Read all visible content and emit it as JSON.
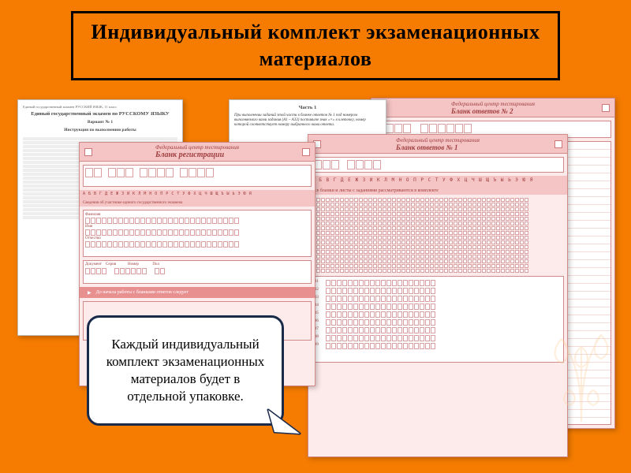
{
  "title": "Индивидуальный комплект экзаменационных материалов",
  "callout": "Каждый индивидуальный комплект экзаменационных материалов будет в отдельной упаковке.",
  "forms": {
    "answers2": {
      "org": "Федеральный центр тестирования",
      "title": "Бланк ответов № 2"
    },
    "answers1": {
      "org": "Федеральный центр тестирования",
      "title": "Бланк ответов № 1"
    },
    "registration": {
      "org": "Федеральный центр тестирования",
      "title": "Бланк регистрации",
      "footer": "До начала работы с бланками ответов следует"
    },
    "part1": {
      "header": "Часть 1",
      "note": "При выполнении заданий этой части в бланке ответов № 1 под номером выполняемого вами задания (A1 – A33) поставьте знак «×» в клеточку, номер которой соответствует номеру выбранного вами ответа."
    }
  },
  "instruction": {
    "topline": "Единый государственный экзамен    РУССКИЙ ЯЗЫК, 11 класс",
    "title": "Единый государственный экзамен по РУССКОМУ ЯЗЫКУ",
    "variant": "Вариант № 1",
    "subtitle": "Инструкция по выполнению работы"
  },
  "colors": {
    "bg": "#f57c00",
    "formBg": "#fdeaea",
    "formHeader": "#f5c4c4",
    "formBorder": "#d08a8a",
    "calloutBorder": "#1a2a4a"
  }
}
